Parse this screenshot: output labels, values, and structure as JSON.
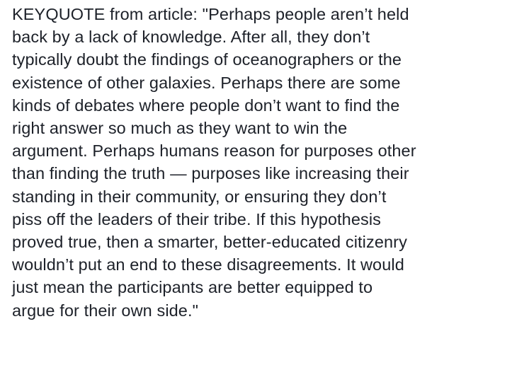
{
  "post": {
    "lines": [
      "KEYQUOTE from article: \"Perhaps people aren’t held",
      "back by a lack of knowledge. After all, they don’t",
      "typically doubt the findings of oceanographers or the",
      "existence of other galaxies. Perhaps there are some",
      "kinds of debates where people don’t want to find the",
      "right answer so much as they want to win the",
      "argument. Perhaps humans reason for purposes other",
      "than finding the truth — purposes like increasing their",
      "standing in their community, or ensuring they don’t",
      "piss off the leaders of their tribe. If this hypothesis",
      "proved true, then a smarter, better-educated citizenry",
      "wouldn’t put an end to these disagreements. It would",
      "just mean the participants are better equipped to",
      "argue for their own side.\""
    ]
  }
}
